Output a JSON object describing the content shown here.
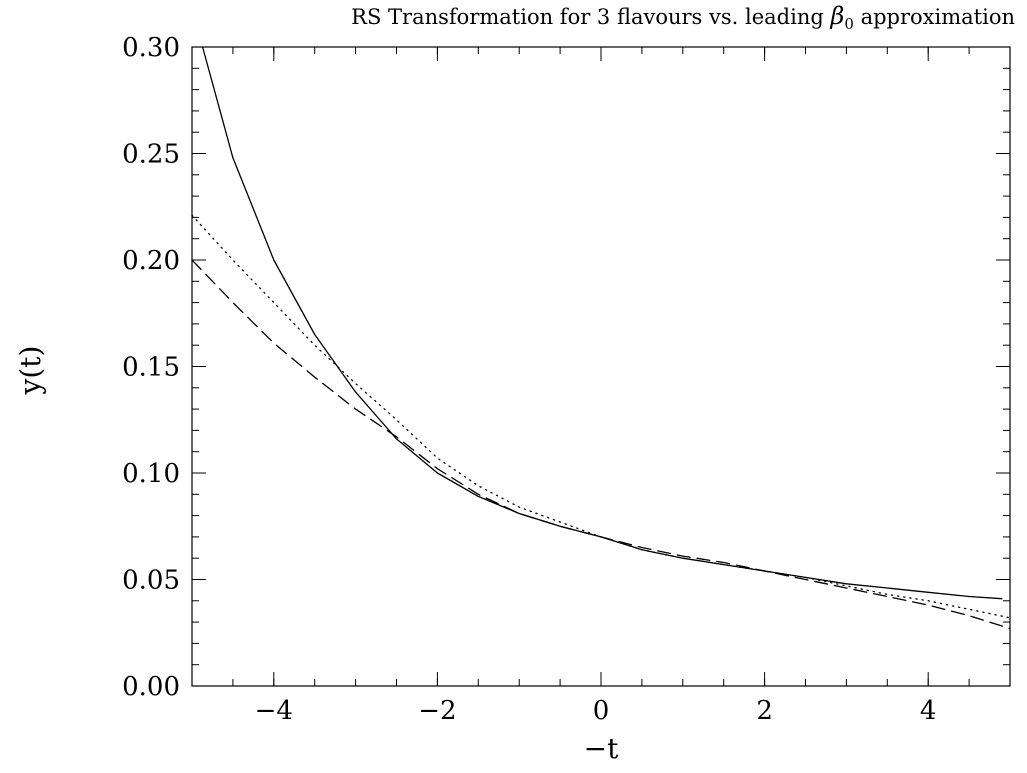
{
  "chart_data": {
    "type": "line",
    "title_main": "RS Transformation for 3 flavours vs. leading ",
    "title_symbol": "β",
    "title_subscript": "0",
    "title_tail": " approximation",
    "xlabel": "−t",
    "ylabel": "y(t)",
    "xlim": [
      -5,
      5
    ],
    "ylim": [
      0,
      0.3
    ],
    "x_major_ticks": [
      -4,
      -2,
      0,
      2,
      4
    ],
    "x_tick_labels": [
      "−4",
      "−2",
      "0",
      "2",
      "4"
    ],
    "x_minor_step": 0.5,
    "y_major_ticks": [
      0,
      0.05,
      0.1,
      0.15,
      0.2,
      0.25,
      0.3
    ],
    "y_tick_labels": [
      "0.00",
      "0.05",
      "0.10",
      "0.15",
      "0.20",
      "0.25",
      "0.30"
    ],
    "y_minor_step": 0.01,
    "grid": false,
    "series": [
      {
        "style": "solid",
        "x": [
          -4.87,
          -4.5,
          -4.0,
          -3.5,
          -3.0,
          -2.5,
          -2.0,
          -1.5,
          -1.0,
          -0.5,
          0.0,
          0.5,
          1.0,
          1.5,
          2.0,
          2.5,
          3.0,
          3.5,
          4.0,
          4.5,
          4.9
        ],
        "y": [
          0.3,
          0.248,
          0.2,
          0.165,
          0.138,
          0.116,
          0.1,
          0.089,
          0.081,
          0.075,
          0.07,
          0.064,
          0.06,
          0.057,
          0.054,
          0.051,
          0.048,
          0.046,
          0.044,
          0.042,
          0.041
        ]
      },
      {
        "style": "dotted",
        "x": [
          -5.0,
          -4.5,
          -4.0,
          -3.5,
          -3.0,
          -2.5,
          -2.0,
          -1.5,
          -1.0,
          -0.5,
          0.0,
          0.5,
          1.0,
          1.5,
          2.0,
          2.5,
          3.0,
          3.5,
          4.0,
          4.5,
          5.0
        ],
        "y": [
          0.221,
          0.2,
          0.18,
          0.16,
          0.142,
          0.125,
          0.107,
          0.094,
          0.084,
          0.077,
          0.07,
          0.064,
          0.06,
          0.057,
          0.054,
          0.051,
          0.047,
          0.043,
          0.04,
          0.036,
          0.032
        ]
      },
      {
        "style": "dashed",
        "x": [
          -5.0,
          -4.5,
          -4.0,
          -3.5,
          -3.0,
          -2.5,
          -2.0,
          -1.5,
          -1.0,
          -0.5,
          0.0,
          0.5,
          1.0,
          1.5,
          2.0,
          2.5,
          3.0,
          3.5,
          4.0,
          4.5,
          5.0
        ],
        "y": [
          0.2,
          0.18,
          0.161,
          0.145,
          0.13,
          0.117,
          0.102,
          0.09,
          0.081,
          0.075,
          0.07,
          0.065,
          0.061,
          0.058,
          0.054,
          0.05,
          0.046,
          0.042,
          0.038,
          0.033,
          0.027
        ]
      }
    ]
  }
}
